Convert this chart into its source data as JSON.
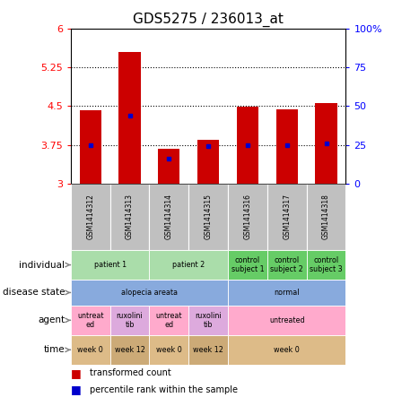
{
  "title": "GDS5275 / 236013_at",
  "samples": [
    "GSM1414312",
    "GSM1414313",
    "GSM1414314",
    "GSM1414315",
    "GSM1414316",
    "GSM1414317",
    "GSM1414318"
  ],
  "transformed_count": [
    4.42,
    5.55,
    3.68,
    3.85,
    4.48,
    4.43,
    4.55
  ],
  "percentile_rank": [
    25,
    44,
    16,
    24,
    25,
    25,
    26
  ],
  "ylim": [
    3.0,
    6.0
  ],
  "yticks_left": [
    3,
    3.75,
    4.5,
    5.25,
    6
  ],
  "yticks_right": [
    0,
    25,
    50,
    75,
    100
  ],
  "bar_color": "#cc0000",
  "dot_color": "#0000cc",
  "bar_width": 0.55,
  "sample_bg_color": "#C0C0C0",
  "figsize": [
    4.38,
    4.53
  ],
  "dpi": 100,
  "meta_rows": [
    {
      "label": "individual",
      "cells": [
        {
          "cols": [
            0,
            1
          ],
          "text": "patient 1",
          "color": "#aaddaa"
        },
        {
          "cols": [
            2,
            3
          ],
          "text": "patient 2",
          "color": "#aaddaa"
        },
        {
          "cols": [
            4,
            4
          ],
          "text": "control\nsubject 1",
          "color": "#66cc66"
        },
        {
          "cols": [
            5,
            5
          ],
          "text": "control\nsubject 2",
          "color": "#66cc66"
        },
        {
          "cols": [
            6,
            6
          ],
          "text": "control\nsubject 3",
          "color": "#66cc66"
        }
      ]
    },
    {
      "label": "disease state",
      "cells": [
        {
          "cols": [
            0,
            3
          ],
          "text": "alopecia areata",
          "color": "#88aadd"
        },
        {
          "cols": [
            4,
            6
          ],
          "text": "normal",
          "color": "#88aadd"
        }
      ]
    },
    {
      "label": "agent",
      "cells": [
        {
          "cols": [
            0,
            0
          ],
          "text": "untreat\ned",
          "color": "#ffaacc"
        },
        {
          "cols": [
            1,
            1
          ],
          "text": "ruxolini\ntib",
          "color": "#ddaadd"
        },
        {
          "cols": [
            2,
            2
          ],
          "text": "untreat\ned",
          "color": "#ffaacc"
        },
        {
          "cols": [
            3,
            3
          ],
          "text": "ruxolini\ntib",
          "color": "#ddaadd"
        },
        {
          "cols": [
            4,
            6
          ],
          "text": "untreated",
          "color": "#ffaacc"
        }
      ]
    },
    {
      "label": "time",
      "cells": [
        {
          "cols": [
            0,
            0
          ],
          "text": "week 0",
          "color": "#ddbb88"
        },
        {
          "cols": [
            1,
            1
          ],
          "text": "week 12",
          "color": "#ccaa77"
        },
        {
          "cols": [
            2,
            2
          ],
          "text": "week 0",
          "color": "#ddbb88"
        },
        {
          "cols": [
            3,
            3
          ],
          "text": "week 12",
          "color": "#ccaa77"
        },
        {
          "cols": [
            4,
            6
          ],
          "text": "week 0",
          "color": "#ddbb88"
        }
      ]
    }
  ]
}
